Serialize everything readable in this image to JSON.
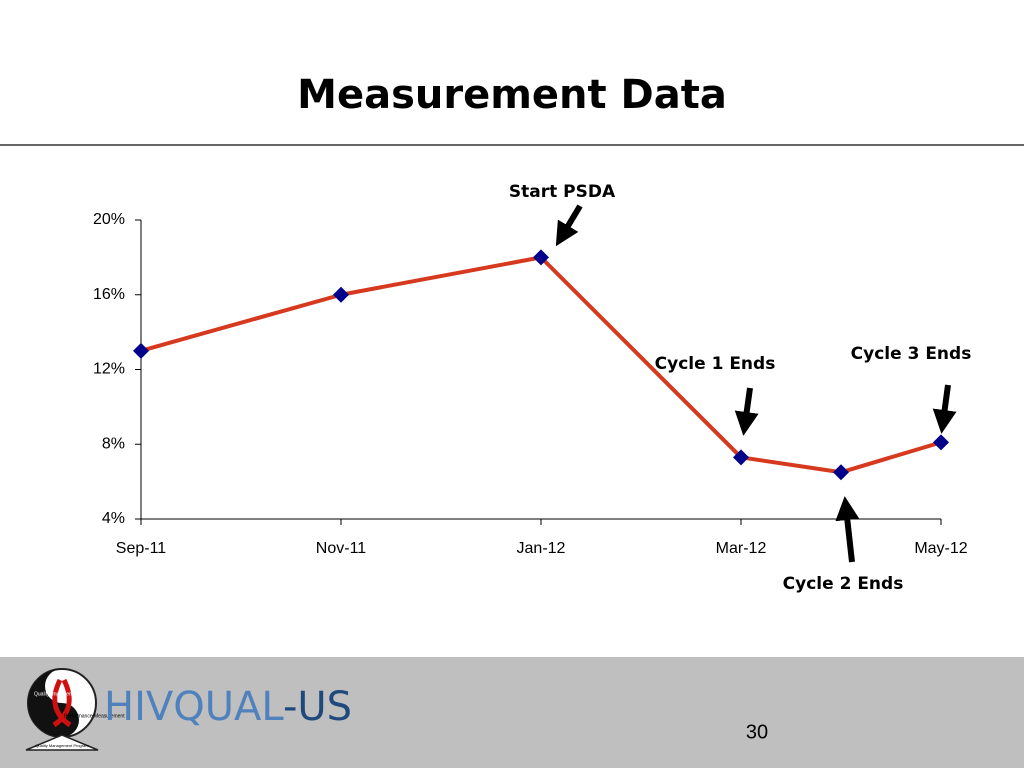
{
  "chart_data": {
    "type": "line",
    "title": "Measurement Data",
    "categories": [
      "Sep-11",
      null,
      "Nov-11",
      null,
      "Jan-12",
      null,
      "Mar-12",
      null,
      "May-12"
    ],
    "series": [
      {
        "color": "#d7391f",
        "marker_color": "#00008b",
        "values": [
          13.0,
          null,
          16.0,
          null,
          18.0,
          null,
          7.3,
          6.5,
          8.1
        ]
      }
    ],
    "connect_gaps": true,
    "ylim": [
      4,
      20
    ],
    "yticks": [
      {
        "value": 4,
        "label": "4%"
      },
      {
        "value": 8,
        "label": "8%"
      },
      {
        "value": 12,
        "label": "12%"
      },
      {
        "value": 16,
        "label": "16%"
      },
      {
        "value": 20,
        "label": "20%"
      }
    ],
    "annotations": [
      "Start PSDA",
      "Cycle 1 Ends",
      "Cycle 3 Ends",
      "Cycle 2 Ends"
    ]
  },
  "footer": {
    "logo": [
      "HIVQUAL",
      "-US"
    ],
    "logo_badge": [
      "Quality Improvement",
      "Performance Measurement",
      "Quality Management Program"
    ],
    "page_number": "30"
  }
}
